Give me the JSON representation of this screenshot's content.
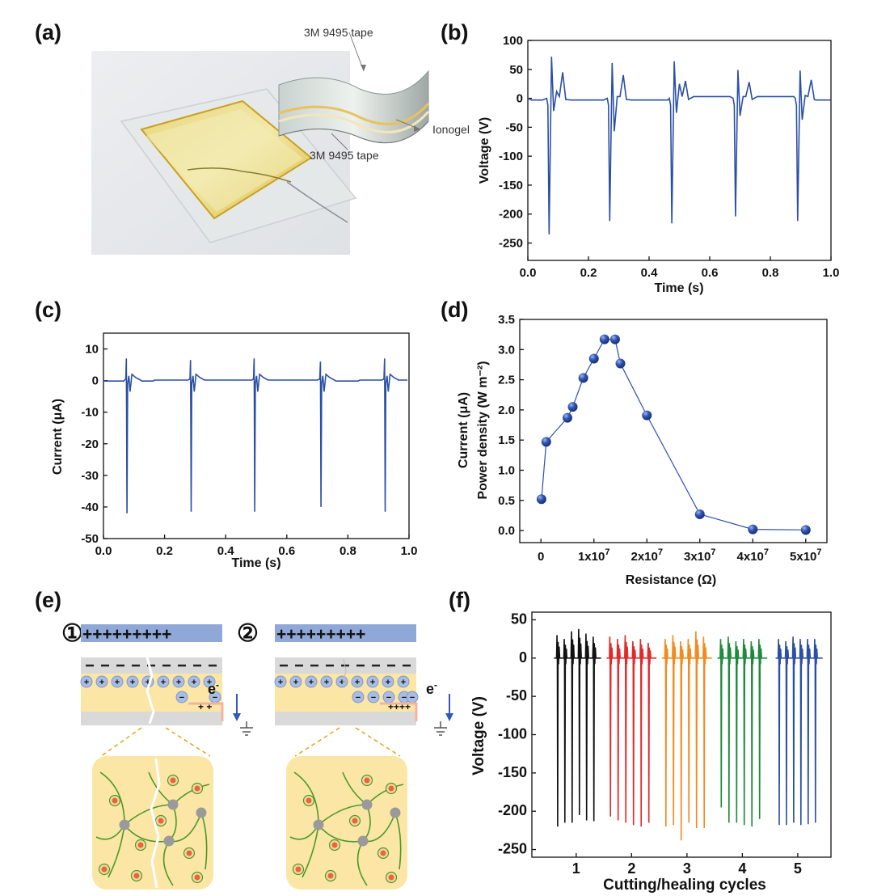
{
  "panel_labels": [
    "(a)",
    "(b)",
    "(c)",
    "(d)",
    "(e)",
    "(f)"
  ],
  "panel_a": {
    "labels": [
      "3M 9495 tape",
      "Ionogel",
      "3M 9495 tape"
    ]
  },
  "panel_e": {
    "step1": "①",
    "step2": "②",
    "positive_bar": "+++++++++",
    "electron": "e",
    "electron_sup": "-",
    "minus_sign": "−",
    "plus_sign": "+",
    "charges_left": "+  +",
    "charges_right": "++++"
  },
  "colors": {
    "line_blue": "#2a4fa5",
    "marker_blue": "#2c4fa8",
    "cycle1": "#111111",
    "cycle2": "#e12a2a",
    "cycle3": "#f28a1e",
    "cycle4": "#1e8a3c",
    "cycle5": "#2a4fa5",
    "gel_yellow": "#fbe6a6",
    "positive_layer": "#8fa8d8",
    "chain_green": "#4a9a2a",
    "ion_orange": "#e8663a",
    "crosslink_grey": "#9a9a9a"
  },
  "chart_data": [
    {
      "id": "b",
      "type": "line",
      "xlabel": "Time (s)",
      "ylabel": "Voltage (V)",
      "xlim": [
        0.0,
        1.0
      ],
      "ylim": [
        -280,
        100
      ],
      "xticks": [
        "0.0",
        "0.2",
        "0.4",
        "0.6",
        "0.8",
        "1.0"
      ],
      "yticks": [
        "100",
        "50",
        "0",
        "-50",
        "-100",
        "-150",
        "-200",
        "-250"
      ],
      "pulse_times": [
        0.07,
        0.27,
        0.475,
        0.685,
        0.89
      ],
      "peaks": [
        {
          "min": -235,
          "max": 72,
          "side1": -22,
          "side2": 12,
          "bump": 45
        },
        {
          "min": -212,
          "max": 61,
          "side1": -57,
          "side2": 3,
          "bump": 40
        },
        {
          "min": -216,
          "max": 64,
          "side1": -25,
          "side2": 25,
          "bump": 30
        },
        {
          "min": -204,
          "max": 49,
          "side1": -30,
          "side2": 3,
          "bump": 28
        },
        {
          "min": -212,
          "max": 48,
          "side1": -37,
          "side2": 5,
          "bump": 32
        }
      ]
    },
    {
      "id": "c",
      "type": "line",
      "xlabel": "Time (s)",
      "ylabel": "Current (μA)",
      "xlim": [
        0.0,
        1.0
      ],
      "ylim": [
        -50,
        15
      ],
      "xticks": [
        "0.0",
        "0.2",
        "0.4",
        "0.6",
        "0.8",
        "1.0"
      ],
      "yticks": [
        "10",
        "0",
        "-10",
        "-20",
        "-30",
        "-40",
        "-50"
      ],
      "pulse_times": [
        0.075,
        0.285,
        0.493,
        0.71,
        0.92
      ],
      "peaks": [
        {
          "min": -42,
          "max": 7
        },
        {
          "min": -41.5,
          "max": 6.5
        },
        {
          "min": -41.5,
          "max": 7
        },
        {
          "min": -40,
          "max": 6
        },
        {
          "min": -41.5,
          "max": 7
        }
      ]
    },
    {
      "id": "d",
      "type": "scatter",
      "xlabel": "Resistance (Ω)",
      "ylabel_lines": [
        "Current (μA)",
        "Power density (W m⁻²)"
      ],
      "xlim": [
        -4000000,
        54000000
      ],
      "ylim": [
        -0.2,
        3.5
      ],
      "xticks": [
        {
          "v": 0,
          "base": "0",
          "exp": ""
        },
        {
          "v": 10000000,
          "base": "1x10",
          "exp": "7"
        },
        {
          "v": 20000000,
          "base": "2x10",
          "exp": "7"
        },
        {
          "v": 30000000,
          "base": "3x10",
          "exp": "7"
        },
        {
          "v": 40000000,
          "base": "4x10",
          "exp": "7"
        },
        {
          "v": 50000000,
          "base": "5x10",
          "exp": "7"
        }
      ],
      "yticks": [
        "0.0",
        "0.5",
        "1.0",
        "1.5",
        "2.0",
        "2.5",
        "3.0",
        "3.5"
      ],
      "x": [
        100000,
        1000000,
        5000000,
        6000000,
        8000000,
        10000000,
        12000000,
        14000000,
        15000000,
        20000000,
        30000000,
        40000000,
        50000000
      ],
      "y": [
        0.52,
        1.47,
        1.87,
        2.05,
        2.53,
        2.85,
        3.17,
        3.17,
        2.77,
        1.91,
        0.27,
        0.02,
        0.01
      ]
    },
    {
      "id": "f",
      "type": "line",
      "xlabel": "Cutting/healing cycles",
      "ylabel": "Voltage (V)",
      "xlim": [
        0.2,
        5.6
      ],
      "ylim": [
        -260,
        60
      ],
      "xticks": [
        "1",
        "2",
        "3",
        "4",
        "5"
      ],
      "yticks": [
        "50",
        "0",
        "-50",
        "-100",
        "-150",
        "-200",
        "-250"
      ],
      "series": [
        {
          "cycle": 1,
          "start": 0.6,
          "end": 1.45,
          "mins": [
            -220,
            -215,
            -215,
            -205,
            -212,
            -213
          ],
          "maxs": [
            30,
            25,
            35,
            38,
            32,
            28
          ]
        },
        {
          "cycle": 2,
          "start": 1.55,
          "end": 2.45,
          "mins": [
            -207,
            -212,
            -215,
            -218,
            -220,
            -215
          ],
          "maxs": [
            28,
            25,
            30,
            22,
            25,
            20
          ]
        },
        {
          "cycle": 3,
          "start": 2.55,
          "end": 3.45,
          "mins": [
            -220,
            -218,
            -238,
            -215,
            -222,
            -222
          ],
          "maxs": [
            25,
            30,
            22,
            25,
            35,
            28
          ]
        },
        {
          "cycle": 4,
          "start": 3.55,
          "end": 4.45,
          "mins": [
            -195,
            -215,
            -215,
            -218,
            -220,
            -210
          ],
          "maxs": [
            25,
            28,
            22,
            25,
            22,
            25
          ]
        },
        {
          "cycle": 5,
          "start": 4.6,
          "end": 5.45,
          "mins": [
            -218,
            -218,
            -215,
            -218,
            -217,
            -215
          ],
          "maxs": [
            25,
            22,
            28,
            25,
            25,
            25
          ]
        }
      ]
    }
  ]
}
